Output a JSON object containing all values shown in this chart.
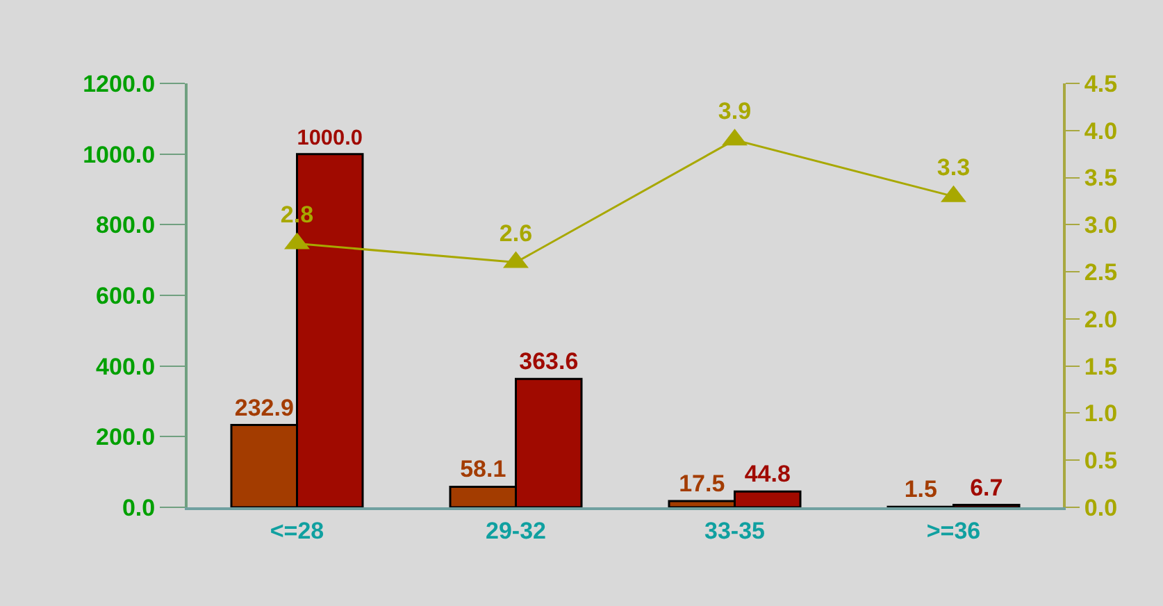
{
  "chart_data": {
    "type": "bar",
    "categories": [
      "<=28",
      "29-32",
      "33-35",
      ">=36"
    ],
    "series": [
      {
        "color": "#a33c00",
        "values": [
          232.9,
          58.1,
          17.5,
          1.5
        ],
        "value_labels": [
          "232.9",
          "58.1",
          "17.5",
          "1.5"
        ]
      },
      {
        "color": "#a00a00",
        "values": [
          1000.0,
          363.6,
          44.8,
          6.7
        ],
        "value_labels": [
          "1000.0",
          "363.6",
          "44.8",
          "6.7"
        ]
      },
      {
        "type": "line",
        "axis": "y2",
        "color": "#a8a800",
        "values": [
          2.8,
          2.6,
          3.9,
          3.3
        ],
        "value_labels": [
          "2.8",
          "2.6",
          "3.9",
          "3.3"
        ]
      }
    ],
    "ylim": [
      0,
      1200
    ],
    "yticks": [
      {
        "value": 0,
        "label": "0.0"
      },
      {
        "value": 200,
        "label": "200.0"
      },
      {
        "value": 400,
        "label": "400.0"
      },
      {
        "value": 600,
        "label": "600.0"
      },
      {
        "value": 800,
        "label": "800.0"
      },
      {
        "value": 1000,
        "label": "1000.0"
      },
      {
        "value": 1200,
        "label": "1200.0"
      }
    ],
    "y2lim": [
      0,
      4.5
    ],
    "y2ticks": [
      {
        "value": 0,
        "label": "0.0"
      },
      {
        "value": 0.5,
        "label": "0.5"
      },
      {
        "value": 1,
        "label": "1.0"
      },
      {
        "value": 1.5,
        "label": "1.5"
      },
      {
        "value": 2,
        "label": "2.0"
      },
      {
        "value": 2.5,
        "label": "2.5"
      },
      {
        "value": 3,
        "label": "3.0"
      },
      {
        "value": 3.5,
        "label": "3.5"
      },
      {
        "value": 4,
        "label": "4.0"
      },
      {
        "value": 4.5,
        "label": "4.5"
      }
    ],
    "grid": false,
    "marker": "triangle",
    "line_style": "solid"
  }
}
